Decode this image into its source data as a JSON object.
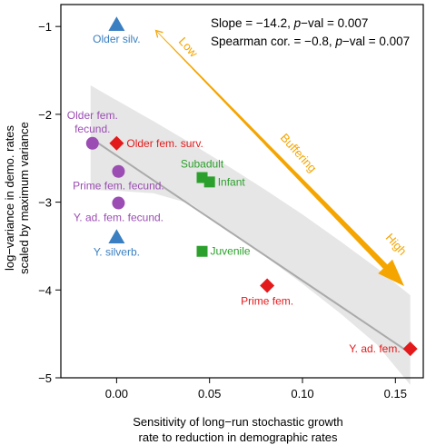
{
  "chart_data": {
    "type": "scatter",
    "xlabel_lines": [
      "Sensitivity of long−run stochastic growth",
      "rate to reduction in demographic rates"
    ],
    "ylabel_lines": [
      "log−variance in demo. rates",
      "scaled by maximum variance"
    ],
    "xlim": [
      -0.03,
      0.165
    ],
    "ylim": [
      -5.0,
      -0.75
    ],
    "x_ticks": [
      0.0,
      0.05,
      0.1,
      0.15
    ],
    "x_tick_labels": [
      "0.00",
      "0.05",
      "0.10",
      "0.15"
    ],
    "y_ticks": [
      -1,
      -2,
      -3,
      -4,
      -5
    ],
    "y_tick_labels": [
      "−1",
      "−2",
      "−3",
      "−4",
      "−5"
    ],
    "grid": false,
    "annotation_stats": {
      "line1": {
        "pre": "Slope = −14.2, ",
        "p": "p",
        "post": "−val = 0.007"
      },
      "line2": {
        "pre": "Spearman cor. = −0.8, ",
        "p": "p",
        "post": "−val = 0.007"
      }
    },
    "buffering_arrow": {
      "low_label": "Low",
      "mid_label": "Buffering",
      "high_label": "High",
      "color": "#f5a500"
    },
    "regression": {
      "x": [
        -0.014,
        0.158
      ],
      "y": [
        -2.27,
        -4.72
      ],
      "line_color": "#aaaaaa",
      "band_color": "#e6e6e6",
      "band_upper": [
        [
          -0.014,
          -1.67
        ],
        [
          0.0,
          -1.84
        ],
        [
          0.02,
          -2.08
        ],
        [
          0.04,
          -2.33
        ],
        [
          0.06,
          -2.59
        ],
        [
          0.08,
          -2.86
        ],
        [
          0.1,
          -3.14
        ],
        [
          0.12,
          -3.44
        ],
        [
          0.14,
          -3.75
        ],
        [
          0.158,
          -4.06
        ]
      ],
      "band_lower": [
        [
          -0.014,
          -2.86
        ],
        [
          0.0,
          -2.87
        ],
        [
          0.02,
          -2.9
        ],
        [
          0.04,
          -3.02
        ],
        [
          0.06,
          -3.32
        ],
        [
          0.08,
          -3.62
        ],
        [
          0.1,
          -3.93
        ],
        [
          0.12,
          -4.26
        ],
        [
          0.14,
          -4.62
        ],
        [
          0.158,
          -5.08
        ]
      ]
    },
    "points": [
      {
        "label": "Older silv.",
        "x": 0.0,
        "y": -0.98,
        "shape": "triangle",
        "color": "#3a7fc1",
        "label_pos": "below"
      },
      {
        "label": "Y. silverb.",
        "x": 0.0,
        "y": -3.4,
        "shape": "triangle",
        "color": "#3a7fc1",
        "label_pos": "below"
      },
      {
        "label": "Older fem. surv.",
        "x": 0.0,
        "y": -2.33,
        "shape": "diamond",
        "color": "#e31a1c",
        "label_pos": "right"
      },
      {
        "label": "Older fem.\nfecund.",
        "x": -0.013,
        "y": -2.33,
        "shape": "circle",
        "color": "#9b4db3",
        "label_pos": "above"
      },
      {
        "label": "Prime fem. fecund.",
        "x": 0.001,
        "y": -2.65,
        "shape": "circle",
        "color": "#9b4db3",
        "label_pos": "below"
      },
      {
        "label": "Y. ad. fem. fecund.",
        "x": 0.001,
        "y": -3.01,
        "shape": "circle",
        "color": "#9b4db3",
        "label_pos": "below"
      },
      {
        "label": "Subadult",
        "x": 0.046,
        "y": -2.72,
        "shape": "square",
        "color": "#2ca02c",
        "label_pos": "above"
      },
      {
        "label": "Infant",
        "x": 0.05,
        "y": -2.77,
        "shape": "square",
        "color": "#2ca02c",
        "label_pos": "right"
      },
      {
        "label": "Juvenile",
        "x": 0.046,
        "y": -3.56,
        "shape": "square",
        "color": "#2ca02c",
        "label_pos": "right"
      },
      {
        "label": "Prime fem.",
        "x": 0.081,
        "y": -3.95,
        "shape": "diamond",
        "color": "#e31a1c",
        "label_pos": "below"
      },
      {
        "label": "Y. ad. fem.",
        "x": 0.158,
        "y": -4.67,
        "shape": "diamond",
        "color": "#e31a1c",
        "label_pos": "left"
      }
    ]
  }
}
